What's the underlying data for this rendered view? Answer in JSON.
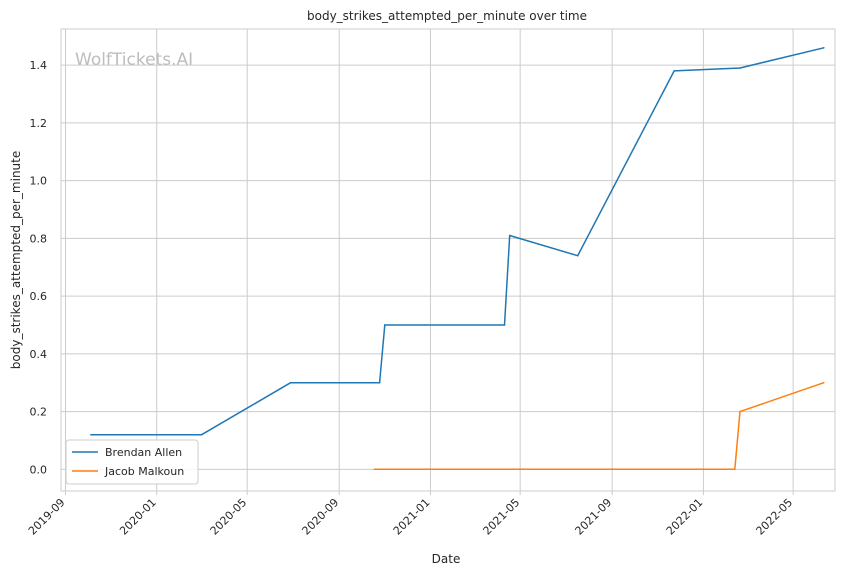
{
  "chart_data": {
    "type": "line",
    "title": "body_strikes_attempted_per_minute over time",
    "xlabel": "Date",
    "ylabel": "body_strikes_attempted_per_minute",
    "watermark": "WolfTickets.AI",
    "xlim": [
      "2019-08-26",
      "2022-06-26"
    ],
    "ylim": [
      -0.075,
      1.525
    ],
    "x_ticks": [
      "2019-09",
      "2020-01",
      "2020-05",
      "2020-09",
      "2021-01",
      "2021-05",
      "2021-09",
      "2022-01",
      "2022-05"
    ],
    "y_ticks": [
      "0.0",
      "0.2",
      "0.4",
      "0.6",
      "0.8",
      "1.0",
      "1.2",
      "1.4"
    ],
    "grid": true,
    "legend_position": "lower-left",
    "series": [
      {
        "name": "Brendan Allen",
        "color": "#1f77b4",
        "points": [
          {
            "x": "2019-10-05",
            "y": 0.12
          },
          {
            "x": "2020-03-01",
            "y": 0.12
          },
          {
            "x": "2020-06-28",
            "y": 0.3
          },
          {
            "x": "2020-10-18",
            "y": 0.3
          },
          {
            "x": "2020-10-25",
            "y": 0.3
          },
          {
            "x": "2020-11-01",
            "y": 0.5
          },
          {
            "x": "2021-04-10",
            "y": 0.5
          },
          {
            "x": "2021-04-17",
            "y": 0.81
          },
          {
            "x": "2021-07-17",
            "y": 0.74
          },
          {
            "x": "2021-11-23",
            "y": 1.38
          },
          {
            "x": "2022-02-19",
            "y": 1.39
          },
          {
            "x": "2022-06-11",
            "y": 1.46
          }
        ]
      },
      {
        "name": "Jacob Malkoun",
        "color": "#ff7f0e",
        "points": [
          {
            "x": "2020-10-18",
            "y": 0.0
          },
          {
            "x": "2022-02-12",
            "y": 0.0
          },
          {
            "x": "2022-02-19",
            "y": 0.2
          },
          {
            "x": "2022-06-11",
            "y": 0.3
          }
        ]
      }
    ]
  }
}
